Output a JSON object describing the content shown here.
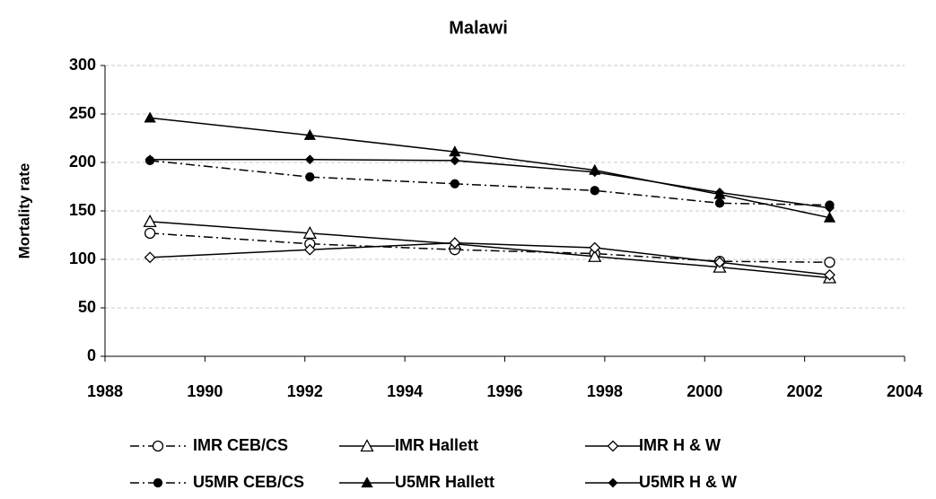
{
  "chart_data": {
    "type": "line",
    "title": "Malawi",
    "ylabel": "Mortality rate",
    "x": [
      1988.9,
      1992.1,
      1995.0,
      1997.8,
      2000.3,
      2002.5
    ],
    "xlim": [
      1988,
      2004
    ],
    "xticks": [
      1988,
      1990,
      1992,
      1994,
      1996,
      1998,
      2000,
      2002,
      2004
    ],
    "ylim": [
      0,
      300
    ],
    "yticks": [
      0,
      50,
      100,
      150,
      200,
      250,
      300
    ],
    "grid": true,
    "series": [
      {
        "name": "IMR CEB/CS",
        "color": "#000000",
        "marker": "circle",
        "filled": false,
        "dash": "dash-dot",
        "values": [
          127,
          116,
          110,
          106,
          98,
          97
        ]
      },
      {
        "name": "IMR Hallett",
        "color": "#000000",
        "marker": "triangle",
        "filled": false,
        "dash": "solid",
        "values": [
          139,
          127,
          116,
          103,
          92,
          81
        ]
      },
      {
        "name": "IMR H & W",
        "color": "#000000",
        "marker": "diamond",
        "filled": false,
        "dash": "solid",
        "values": [
          102,
          110,
          117,
          112,
          97,
          84
        ]
      },
      {
        "name": "U5MR CEB/CS",
        "color": "#000000",
        "marker": "circle",
        "filled": true,
        "dash": "dash-dot",
        "values": [
          202,
          185,
          178,
          171,
          158,
          156
        ]
      },
      {
        "name": "U5MR Hallett",
        "color": "#000000",
        "marker": "triangle",
        "filled": true,
        "dash": "solid",
        "values": [
          246,
          228,
          211,
          192,
          167,
          143
        ]
      },
      {
        "name": "U5MR H & W",
        "color": "#000000",
        "marker": "diamond",
        "filled": true,
        "dash": "solid",
        "values": [
          203,
          203,
          202,
          190,
          169,
          153
        ]
      }
    ]
  }
}
